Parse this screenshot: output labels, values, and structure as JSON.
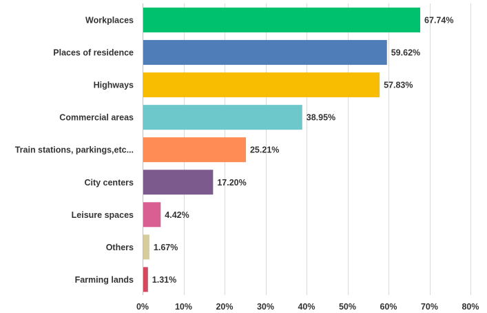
{
  "chart_data": {
    "type": "bar",
    "orientation": "horizontal",
    "categories": [
      "Workplaces",
      "Places of residence",
      "Highways",
      "Commercial areas",
      "Train stations, parkings,etc...",
      "City centers",
      "Leisure spaces",
      "Others",
      "Farming lands"
    ],
    "values": [
      67.74,
      59.62,
      57.83,
      38.95,
      25.21,
      17.2,
      4.42,
      1.67,
      1.31
    ],
    "value_labels": [
      "67.74%",
      "59.62%",
      "57.83%",
      "38.95%",
      "25.21%",
      "17.20%",
      "4.42%",
      "1.67%",
      "1.31%"
    ],
    "colors": [
      "#00c26e",
      "#4e7db8",
      "#f8bd00",
      "#6cc8cb",
      "#ff8c55",
      "#7d5a8e",
      "#d95f92",
      "#d6cc9c",
      "#d6485e"
    ],
    "x_ticks": [
      "0%",
      "10%",
      "20%",
      "30%",
      "40%",
      "50%",
      "60%",
      "70%",
      "80%"
    ],
    "xlim": [
      0,
      80
    ],
    "grid": true,
    "legend": false
  }
}
